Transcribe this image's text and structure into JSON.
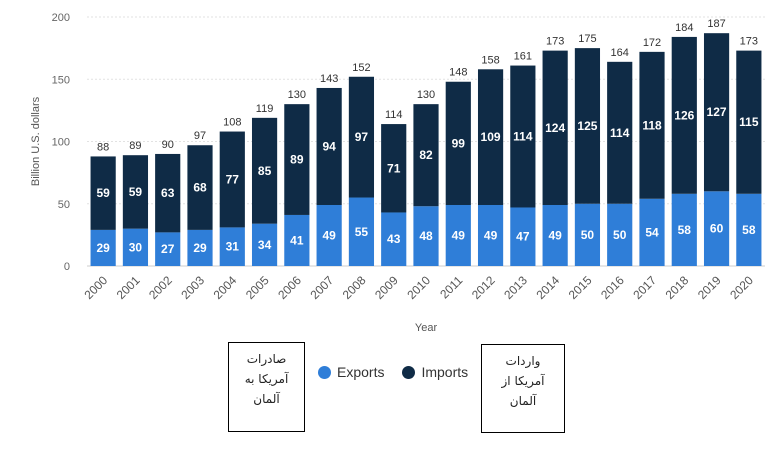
{
  "chart_data": {
    "type": "bar",
    "stacked": true,
    "ylabel": "Billion U.S. dollars",
    "xlabel": "Year",
    "ylim": [
      0,
      200
    ],
    "yticks": [
      0,
      50,
      100,
      150,
      200
    ],
    "categories": [
      "2000",
      "2001",
      "2002",
      "2003",
      "2004",
      "2005",
      "2006",
      "2007",
      "2008",
      "2009",
      "2010",
      "2011",
      "2012",
      "2013",
      "2014",
      "2015",
      "2016",
      "2017",
      "2018",
      "2019",
      "2020"
    ],
    "series": [
      {
        "name": "Exports",
        "color": "#2f7ed8",
        "values": [
          29,
          30,
          27,
          29,
          31,
          34,
          41,
          49,
          55,
          43,
          48,
          49,
          49,
          47,
          49,
          50,
          50,
          54,
          58,
          60,
          58
        ]
      },
      {
        "name": "Imports",
        "color": "#0f2b46",
        "values": [
          59,
          59,
          63,
          68,
          77,
          85,
          89,
          94,
          97,
          71,
          82,
          99,
          109,
          114,
          124,
          125,
          114,
          118,
          126,
          127,
          115
        ]
      }
    ],
    "totals": [
      88,
      89,
      90,
      97,
      108,
      119,
      130,
      143,
      152,
      114,
      130,
      148,
      158,
      161,
      173,
      175,
      164,
      172,
      184,
      187,
      173
    ]
  },
  "legend": {
    "exports": "Exports",
    "imports": "Imports"
  },
  "annotations": {
    "exports_note": [
      "صادرات",
      "آمریکا به",
      "آلمان"
    ],
    "imports_note": [
      "واردات",
      "آمریکا از",
      "آلمان"
    ]
  }
}
